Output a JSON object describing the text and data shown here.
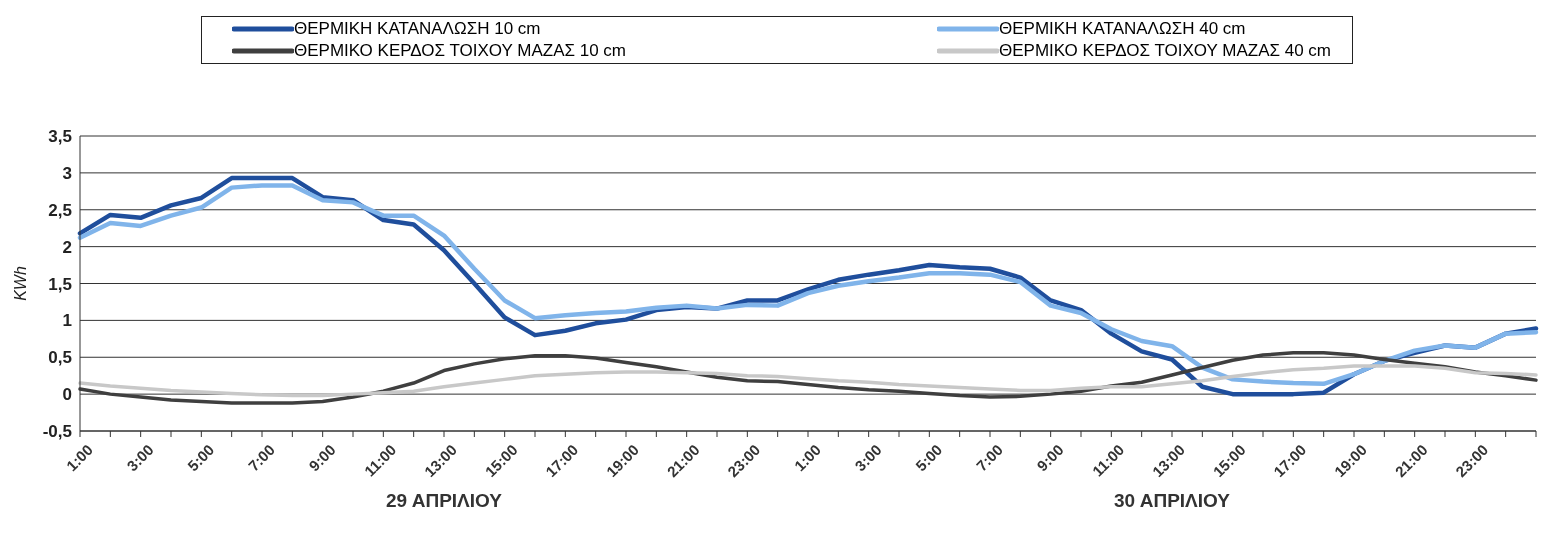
{
  "chart_data": {
    "type": "line",
    "ylabel": "KWh",
    "categories": [
      "1:00",
      null,
      "3:00",
      null,
      "5:00",
      null,
      "7:00",
      null,
      "9:00",
      null,
      "11:00",
      null,
      "13:00",
      null,
      "15:00",
      null,
      "17:00",
      null,
      "19:00",
      null,
      "21:00",
      null,
      "23:00",
      null,
      "1:00",
      null,
      "3:00",
      null,
      "5:00",
      null,
      "7:00",
      null,
      "9:00",
      null,
      "11:00",
      null,
      "13:00",
      null,
      "15:00",
      null,
      "17:00",
      null,
      "19:00",
      null,
      "21:00",
      null,
      "23:00",
      null,
      null
    ],
    "series": [
      {
        "name": "ΘΕΡΜΙΚΗ ΚΑΤΑΝΑΛΩΣΗ 10 cm",
        "color": "#1f4e9c",
        "values": [
          2.18,
          2.43,
          2.39,
          2.56,
          2.66,
          2.93,
          2.93,
          2.93,
          2.67,
          2.63,
          2.36,
          2.3,
          1.95,
          1.5,
          1.04,
          0.8,
          0.86,
          0.96,
          1.01,
          1.14,
          1.18,
          1.16,
          1.27,
          1.27,
          1.42,
          1.55,
          1.62,
          1.68,
          1.75,
          1.72,
          1.7,
          1.58,
          1.27,
          1.14,
          0.82,
          0.58,
          0.47,
          0.1,
          0,
          0,
          0,
          0.02,
          0.27,
          0.45,
          0.56,
          0.66,
          0.63,
          0.82,
          0.89
        ]
      },
      {
        "name": "ΘΕΡΜΙΚΗ ΚΑΤΑΝΑΛΩΣΗ 40 cm",
        "color": "#80b4ea",
        "values": [
          2.12,
          2.32,
          2.28,
          2.42,
          2.53,
          2.8,
          2.83,
          2.83,
          2.63,
          2.6,
          2.42,
          2.42,
          2.15,
          1.7,
          1.27,
          1.03,
          1.07,
          1.1,
          1.12,
          1.17,
          1.2,
          1.16,
          1.21,
          1.2,
          1.37,
          1.47,
          1.53,
          1.58,
          1.64,
          1.64,
          1.62,
          1.52,
          1.2,
          1.1,
          0.88,
          0.72,
          0.65,
          0.36,
          0.2,
          0.17,
          0.15,
          0.14,
          0.27,
          0.45,
          0.59,
          0.66,
          0.63,
          0.82,
          0.84
        ]
      },
      {
        "name": "ΘΕΡΜΙΚΟ ΚΕΡΔΟΣ ΤΟΙΧΟΥ ΜΑΖΑΣ 10 cm",
        "color": "#3f3f3f",
        "values": [
          0.07,
          0,
          -0.04,
          -0.08,
          -0.1,
          -0.12,
          -0.12,
          -0.12,
          -0.1,
          -0.04,
          0.04,
          0.15,
          0.32,
          0.41,
          0.48,
          0.52,
          0.52,
          0.49,
          0.43,
          0.37,
          0.3,
          0.23,
          0.18,
          0.17,
          0.13,
          0.09,
          0.06,
          0.04,
          0.01,
          -0.02,
          -0.04,
          -0.03,
          0,
          0.04,
          0.11,
          0.16,
          0.26,
          0.36,
          0.46,
          0.53,
          0.56,
          0.56,
          0.53,
          0.47,
          0.42,
          0.37,
          0.3,
          0.25,
          0.19
        ]
      },
      {
        "name": "ΘΕΡΜΙΚΟ ΚΕΡΔΟΣ ΤΟΙΧΟΥ ΜΑΖΑΣ 40 cm",
        "color": "#c8c8c8",
        "values": [
          0.15,
          0.11,
          0.08,
          0.05,
          0.03,
          0.01,
          -0.01,
          -0.02,
          -0.02,
          0,
          0.02,
          0.04,
          0.1,
          0.15,
          0.2,
          0.25,
          0.27,
          0.29,
          0.3,
          0.3,
          0.29,
          0.28,
          0.25,
          0.24,
          0.21,
          0.18,
          0.16,
          0.13,
          0.11,
          0.09,
          0.07,
          0.05,
          0.05,
          0.08,
          0.1,
          0.1,
          0.14,
          0.18,
          0.24,
          0.29,
          0.33,
          0.35,
          0.38,
          0.38,
          0.38,
          0.35,
          0.29,
          0.28,
          0.26
        ]
      }
    ],
    "ylim": [
      -0.5,
      3.5
    ],
    "yticks": [
      {
        "value": -0.5,
        "label": "-0,5"
      },
      0,
      {
        "value": 0.5,
        "label": "0,5"
      },
      1,
      {
        "value": 1.5,
        "label": "1,5"
      },
      2,
      {
        "value": 2.5,
        "label": "2,5"
      },
      3,
      {
        "value": 3.5,
        "label": "3,5"
      }
    ],
    "grid": "y",
    "legend": "top",
    "marker": "none",
    "line_style": "solid",
    "annotations": [
      "29 ΑΠΡΙΛΙΟΥ",
      "30 ΑΠΡΙΛΙΟΥ"
    ]
  }
}
